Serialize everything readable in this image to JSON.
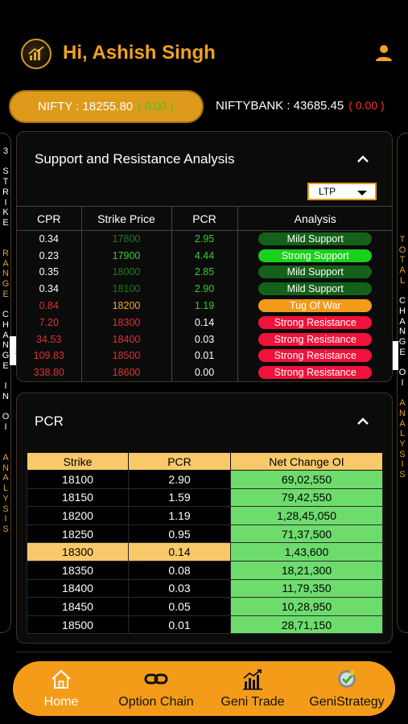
{
  "header": {
    "greeting": "Hi, Ashish Singh",
    "logo_icon": "bull-logo-icon",
    "user_icon": "user-icon"
  },
  "ticker": {
    "nifty_label": "NIFTY : 18255.80",
    "nifty_change": "( 0.00 )",
    "banknifty_label": "NIFTYBANK : 43685.45",
    "banknifty_change": "( 0.00 )"
  },
  "left_tab": {
    "letters": [
      "3",
      "",
      "S",
      "T",
      "R",
      "I",
      "K",
      "E",
      "",
      "",
      "R",
      "A",
      "N",
      "G",
      "E",
      "",
      "C",
      "H",
      "A",
      "N",
      "G",
      "E",
      "",
      "I",
      "N",
      "",
      "O",
      "I",
      "",
      "",
      "A",
      "N",
      "A",
      "L",
      "Y",
      "S",
      "I",
      "S"
    ]
  },
  "right_tab": {
    "letters": [
      "T",
      "O",
      "T",
      "A",
      "L",
      "",
      "C",
      "H",
      "A",
      "N",
      "G",
      "E",
      "",
      "O",
      "I",
      "",
      "A",
      "N",
      "A",
      "L",
      "Y",
      "S",
      "I",
      "S"
    ]
  },
  "support_resistance": {
    "title": "Support and Resistance Analysis",
    "dropdown_value": "LTP",
    "columns": [
      "CPR",
      "Strike Price",
      "PCR",
      "Analysis"
    ],
    "rows": [
      {
        "cpr": "0.34",
        "strike": "17800",
        "pcr": "2.95",
        "analysis": "Mild Support"
      },
      {
        "cpr": "0.23",
        "strike": "17900",
        "pcr": "4.44",
        "analysis": "Strong Support"
      },
      {
        "cpr": "0.35",
        "strike": "18000",
        "pcr": "2.85",
        "analysis": "Mild Support"
      },
      {
        "cpr": "0.34",
        "strike": "18100",
        "pcr": "2.90",
        "analysis": "Mild Support"
      },
      {
        "cpr": "0.84",
        "strike": "18200",
        "pcr": "1.19",
        "analysis": "Tug Of War"
      },
      {
        "cpr": "7.20",
        "strike": "18300",
        "pcr": "0.14",
        "analysis": "Strong Resistance"
      },
      {
        "cpr": "34.53",
        "strike": "18400",
        "pcr": "0.03",
        "analysis": "Strong Resistance"
      },
      {
        "cpr": "109.83",
        "strike": "18500",
        "pcr": "0.01",
        "analysis": "Strong Resistance"
      },
      {
        "cpr": "338.80",
        "strike": "18600",
        "pcr": "0.00",
        "analysis": "Strong Resistance"
      }
    ],
    "colors": {
      "cpr": [
        "#ffffff",
        "#ffffff",
        "#ffffff",
        "#ffffff",
        "#e0322f",
        "#e0322f",
        "#e0322f",
        "#e0322f",
        "#e0322f"
      ],
      "strike": [
        "#1f7a1f",
        "#2ed12e",
        "#1f7a1f",
        "#1f7a1f",
        "#f5a623",
        "#e0322f",
        "#e0322f",
        "#e0322f",
        "#e0322f"
      ],
      "pcr": [
        "#2ed12e",
        "#2ed12e",
        "#2ed12e",
        "#2ed12e",
        "#2ed12e",
        "#ffffff",
        "#ffffff",
        "#ffffff",
        "#ffffff"
      ],
      "badge": [
        "#15611a",
        "#19d11d",
        "#15611a",
        "#15611a",
        "#f39a1a",
        "#f0123a",
        "#f0123a",
        "#f0123a",
        "#f0123a"
      ]
    }
  },
  "pcr_section": {
    "title": "PCR",
    "columns": [
      "Strike",
      "PCR",
      "Net Change OI"
    ],
    "highlight_strike": "18300",
    "rows": [
      {
        "strike": "18100",
        "pcr": "2.90",
        "net": "69,02,550"
      },
      {
        "strike": "18150",
        "pcr": "1.59",
        "net": "79,42,550"
      },
      {
        "strike": "18200",
        "pcr": "1.19",
        "net": "1,28,45,050"
      },
      {
        "strike": "18250",
        "pcr": "0.95",
        "net": "71,37,500"
      },
      {
        "strike": "18300",
        "pcr": "0.14",
        "net": "1,43,600"
      },
      {
        "strike": "18350",
        "pcr": "0.08",
        "net": "18,21,300"
      },
      {
        "strike": "18400",
        "pcr": "0.03",
        "net": "11,79,350"
      },
      {
        "strike": "18450",
        "pcr": "0.05",
        "net": "10,28,950"
      },
      {
        "strike": "18500",
        "pcr": "0.01",
        "net": "28,71,150"
      }
    ]
  },
  "nav": {
    "items": [
      {
        "label": "Home",
        "icon": "home-icon"
      },
      {
        "label": "Option Chain",
        "icon": "chain-link-icon"
      },
      {
        "label": "Geni Trade",
        "icon": "bar-chart-icon"
      },
      {
        "label": "GeniStrategy",
        "icon": "strategy-badge-icon"
      }
    ]
  },
  "theme": {
    "accent": "#f49c19",
    "background": "#000000",
    "pcr_header": "#f7c96a",
    "net_cell": "#6ddc6d"
  }
}
